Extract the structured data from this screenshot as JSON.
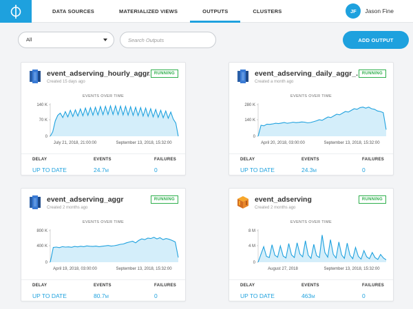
{
  "nav": {
    "logo_icon": "phi-logo-icon",
    "tabs": [
      {
        "label": "DATA SOURCES",
        "active": false
      },
      {
        "label": "MATERIALIZED VIEWS",
        "active": false
      },
      {
        "label": "OUTPUTS",
        "active": true
      },
      {
        "label": "CLUSTERS",
        "active": false
      }
    ],
    "user": {
      "initials": "JF",
      "name": "Jason Fine"
    }
  },
  "toolbar": {
    "filter_value": "All",
    "search_placeholder": "Search Outputs",
    "add_label": "ADD OUTPUT"
  },
  "colors": {
    "accent": "#1ea1de",
    "running": "#2cae4a",
    "fill": "#d4eefa"
  },
  "labels": {
    "chart_title": "EVENTS OVER TIME",
    "delay": "DELAY",
    "events": "EVENTS",
    "failures": "FAILURES"
  },
  "cards": [
    {
      "icon": "redshift-icon",
      "title": "event_adserving_hourly_aggr...",
      "created": "Created 15 days ago",
      "status": "RUNNING",
      "delay": "UP TO DATE",
      "events_num": "24.7",
      "events_unit": "M",
      "failures": "0",
      "chart": {
        "y_ticks": [
          "140 K",
          "70 K",
          "0"
        ],
        "x_start": "July 21, 2018, 21:00:00",
        "x_end": "September 13, 2018, 15:32:00",
        "ymax": 150000,
        "values": [
          0,
          20000,
          70000,
          95000,
          105000,
          85000,
          112000,
          88000,
          118000,
          90000,
          120000,
          92000,
          124000,
          93000,
          128000,
          95000,
          130000,
          96000,
          132000,
          97000,
          135000,
          98000,
          136000,
          99000,
          138000,
          99000,
          138000,
          98000,
          137000,
          97000,
          136000,
          96000,
          134000,
          95000,
          132000,
          94000,
          130000,
          92000,
          128000,
          90000,
          125000,
          88000,
          122000,
          86000,
          118000,
          84000,
          115000,
          82000,
          110000,
          78000,
          60000,
          0
        ]
      }
    },
    {
      "icon": "redshift-icon",
      "title": "event_adserving_daily_aggr_...",
      "created": "Created a month ago",
      "status": "RUNNING",
      "delay": "UP TO DATE",
      "events_num": "24.3",
      "events_unit": "M",
      "failures": "0",
      "chart": {
        "y_ticks": [
          "280 K",
          "140 K",
          "0"
        ],
        "x_start": "April 20, 2018, 03:00:00",
        "x_end": "September 13, 2018, 15:32:00",
        "ymax": 300000,
        "values": [
          0,
          100000,
          95000,
          110000,
          108000,
          112000,
          118000,
          115000,
          120000,
          125000,
          118000,
          122000,
          128000,
          124000,
          126000,
          130000,
          128000,
          122000,
          125000,
          132000,
          140000,
          150000,
          145000,
          160000,
          175000,
          170000,
          185000,
          200000,
          195000,
          210000,
          225000,
          220000,
          235000,
          250000,
          245000,
          260000,
          265000,
          255000,
          265000,
          250000,
          245000,
          230000,
          225000,
          215000,
          60000
        ]
      }
    },
    {
      "icon": "redshift-icon",
      "title": "event_adserving_aggr",
      "created": "Created 2 months ago",
      "status": "RUNNING",
      "delay": "UP TO DATE",
      "events_num": "80.7",
      "events_unit": "M",
      "failures": "0",
      "chart": {
        "y_ticks": [
          "800 K",
          "400 K",
          "0"
        ],
        "x_start": "April 19, 2018, 03:00:00",
        "x_end": "September 13, 2018, 15:32:00",
        "ymax": 850000,
        "values": [
          0,
          380000,
          390000,
          375000,
          400000,
          390000,
          395000,
          385000,
          405000,
          395000,
          410000,
          400000,
          420000,
          410000,
          405000,
          415000,
          400000,
          410000,
          420000,
          430000,
          415000,
          425000,
          440000,
          460000,
          470000,
          500000,
          520000,
          540000,
          500000,
          560000,
          600000,
          580000,
          620000,
          610000,
          640000,
          600000,
          630000,
          580000,
          610000,
          590000,
          560000,
          520000,
          120000
        ]
      }
    },
    {
      "icon": "aws-stack-icon",
      "title": "event_adserving",
      "created": "Created 2 months ago",
      "status": "RUNNING",
      "delay": "UP TO DATE",
      "events_num": "463",
      "events_unit": "M",
      "failures": "0",
      "chart": {
        "y_ticks": [
          "8 M",
          "4 M",
          "0"
        ],
        "x_start": "August 27, 2018",
        "x_end": "September 13, 2018, 15:32:00",
        "ymax": 8500000,
        "values": [
          0,
          2000000,
          4000000,
          1500000,
          1200000,
          4500000,
          1800000,
          1300000,
          4200000,
          1600000,
          1100000,
          4800000,
          1900000,
          1200000,
          5000000,
          2100000,
          1400000,
          5500000,
          1800000,
          1000000,
          4600000,
          1700000,
          1200000,
          7000000,
          2500000,
          1300000,
          5800000,
          2000000,
          1100000,
          5200000,
          1900000,
          1000000,
          4900000,
          1800000,
          900000,
          3800000,
          1500000,
          800000,
          3000000,
          1400000,
          900000,
          2500000,
          1200000,
          700000,
          2000000,
          1100000,
          600000
        ]
      }
    }
  ]
}
